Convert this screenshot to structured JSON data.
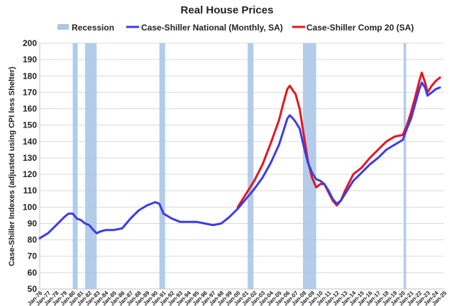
{
  "chart_data": {
    "type": "line",
    "title": "Real House Prices",
    "ylabel": "Case-Shiller Indexes (adjusted using CPI less Shelter)",
    "xlabel": "",
    "ylim": [
      50,
      200
    ],
    "yticks": [
      50,
      60,
      70,
      80,
      90,
      100,
      110,
      120,
      130,
      140,
      150,
      160,
      170,
      180,
      190,
      200
    ],
    "xlim": [
      1976,
      2025
    ],
    "x_tick_labels": [
      "Jan-76",
      "Jan-77",
      "Jan-78",
      "Jan-79",
      "Jan-80",
      "Jan-81",
      "Jan-82",
      "Jan-83",
      "Jan-84",
      "Jan-85",
      "Jan-86",
      "Jan-87",
      "Jan-88",
      "Jan-89",
      "Jan-90",
      "Jan-91",
      "Jan-92",
      "Jan-93",
      "Jan-94",
      "Jan-95",
      "Jan-96",
      "Jan-97",
      "Jan-98",
      "Jan-99",
      "Jan-00",
      "Jan-01",
      "Jan-02",
      "Jan-03",
      "Jan-04",
      "Jan-05",
      "Jan-06",
      "Jan-07",
      "Jan-08",
      "Jan-09",
      "Jan-10",
      "Jan-11",
      "Jan-12",
      "Jan-13",
      "Jan-14",
      "Jan-15",
      "Jan-16",
      "Jan-17",
      "Jan-18",
      "Jan-19",
      "Jan-20",
      "Jan-21",
      "Jan-22",
      "Jan-23",
      "Jan-24",
      "Jan-25"
    ],
    "grid": true,
    "legend_position": "top",
    "legend": [
      {
        "name": "Recession",
        "color": "#aac6e8"
      },
      {
        "name": "Case-Shiller National (Monthly, SA)",
        "color": "#3b3be8"
      },
      {
        "name": "Case-Shiller Comp 20  (SA)",
        "color": "#e8141e"
      }
    ],
    "recessions": [
      [
        1980.0,
        1980.6
      ],
      [
        1981.5,
        1982.9
      ],
      [
        1990.5,
        1991.2
      ],
      [
        2001.2,
        2001.9
      ],
      [
        2007.9,
        2009.5
      ],
      [
        2020.1,
        2020.4
      ]
    ],
    "series": [
      {
        "name": "Case-Shiller National (Monthly, SA)",
        "color": "#3b3be8",
        "x": [
          1976,
          1977,
          1978,
          1979,
          1979.5,
          1980,
          1980.5,
          1981,
          1981.5,
          1982,
          1982.5,
          1982.9,
          1983.3,
          1984,
          1985,
          1986,
          1987,
          1988,
          1989,
          1990,
          1990.5,
          1991,
          1992,
          1993,
          1994,
          1995,
          1996,
          1997,
          1998,
          1999,
          2000,
          2001,
          2002,
          2003,
          2004,
          2005,
          2005.5,
          2006,
          2006.3,
          2006.7,
          2007,
          2007.5,
          2008,
          2008.5,
          2009,
          2009.5,
          2010,
          2010.5,
          2011,
          2011.5,
          2012,
          2012.5,
          2013,
          2014,
          2015,
          2016,
          2017,
          2018,
          2019,
          2020,
          2020.5,
          2021,
          2021.5,
          2022,
          2022.3,
          2022.7,
          2023,
          2023.5,
          2024,
          2024.5
        ],
        "values": [
          81,
          84,
          89,
          94,
          96,
          96,
          93,
          92,
          90,
          89,
          86,
          84,
          85,
          86,
          86,
          87,
          93,
          98,
          101,
          103,
          102,
          96,
          93,
          91,
          91,
          91,
          90,
          89,
          90,
          94,
          99,
          105,
          111,
          118,
          127,
          138,
          146,
          154,
          156,
          154,
          152,
          148,
          137,
          127,
          121,
          117,
          116,
          114,
          110,
          105,
          102,
          104,
          108,
          116,
          121,
          126,
          130,
          135,
          138,
          141,
          148,
          154,
          163,
          172,
          176,
          173,
          168,
          170,
          172,
          173
        ]
      },
      {
        "name": "Case-Shiller Comp 20  (SA)",
        "color": "#e8141e",
        "x": [
          2000,
          2001,
          2002,
          2003,
          2004,
          2005,
          2005.5,
          2006,
          2006.3,
          2006.7,
          2007,
          2007.5,
          2008,
          2008.5,
          2009,
          2009.5,
          2010,
          2010.5,
          2011,
          2011.5,
          2012,
          2012.5,
          2013,
          2014,
          2015,
          2016,
          2017,
          2018,
          2019,
          2020,
          2020.5,
          2021,
          2021.5,
          2022,
          2022.3,
          2022.7,
          2023,
          2023.5,
          2024,
          2024.5
        ],
        "values": [
          100,
          108,
          116,
          126,
          139,
          153,
          163,
          172,
          174,
          171,
          169,
          160,
          144,
          128,
          118,
          112,
          114,
          114,
          109,
          104,
          101,
          104,
          110,
          120,
          124,
          130,
          135,
          140,
          143,
          144,
          150,
          158,
          167,
          177,
          182,
          176,
          170,
          174,
          177,
          179
        ]
      }
    ]
  }
}
